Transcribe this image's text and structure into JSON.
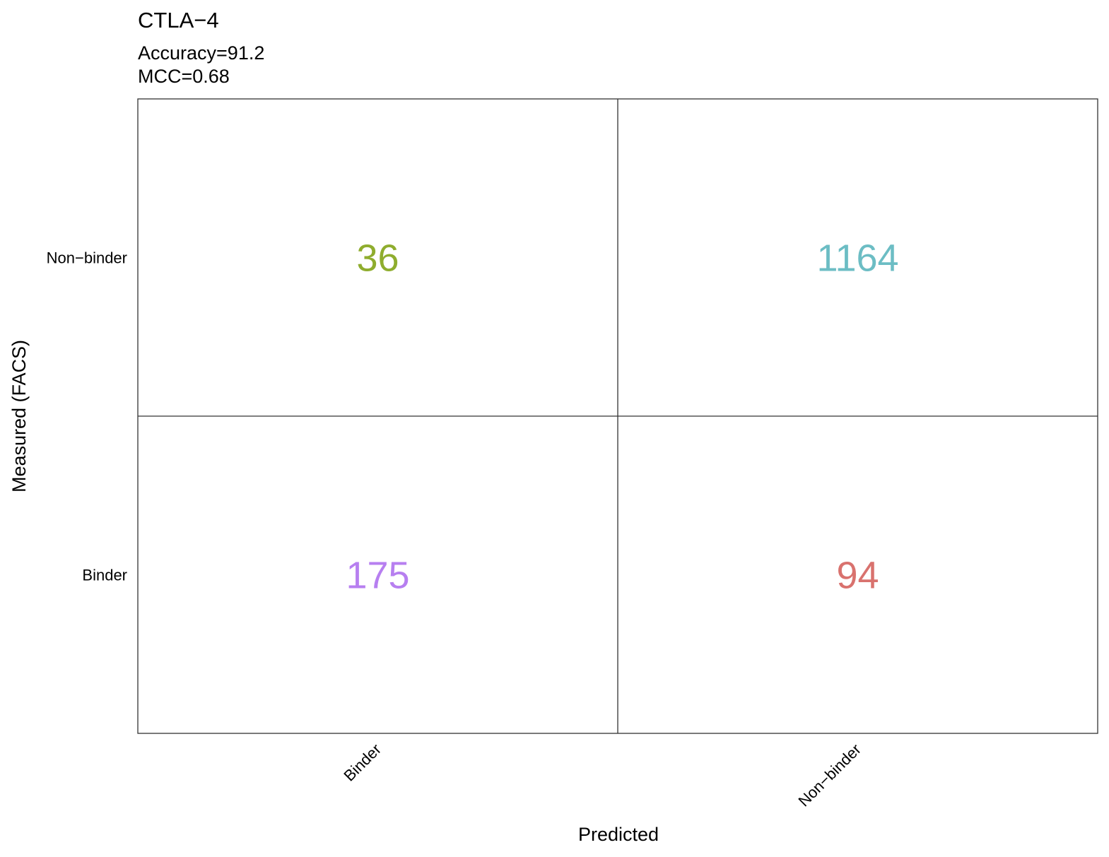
{
  "chart_data": {
    "type": "heatmap",
    "title": "CTLA−4",
    "subtitle_lines": [
      "Accuracy=91.2",
      "MCC=0.68"
    ],
    "xlabel": "Predicted",
    "ylabel": "Measured (FACS)",
    "x_categories": [
      "Binder",
      "Non−binder"
    ],
    "y_categories": [
      "Binder",
      "Non−binder"
    ],
    "cells": [
      {
        "x": "Binder",
        "y": "Non−binder",
        "value": 36,
        "color": "#8fad2e"
      },
      {
        "x": "Non−binder",
        "y": "Non−binder",
        "value": 1164,
        "color": "#6cbdc4"
      },
      {
        "x": "Binder",
        "y": "Binder",
        "value": 175,
        "color": "#b77ff0"
      },
      {
        "x": "Non−binder",
        "y": "Binder",
        "value": 94,
        "color": "#d9726e"
      }
    ],
    "grid": true,
    "legend": "none"
  }
}
